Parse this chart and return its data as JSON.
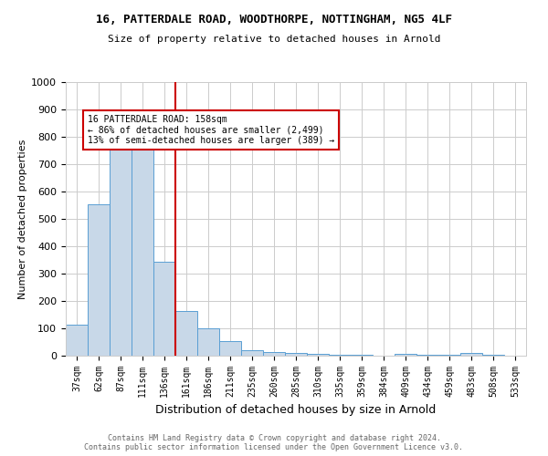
{
  "title_line1": "16, PATTERDALE ROAD, WOODTHORPE, NOTTINGHAM, NG5 4LF",
  "title_line2": "Size of property relative to detached houses in Arnold",
  "xlabel": "Distribution of detached houses by size in Arnold",
  "ylabel": "Number of detached properties",
  "categories": [
    "37sqm",
    "62sqm",
    "87sqm",
    "111sqm",
    "136sqm",
    "161sqm",
    "186sqm",
    "211sqm",
    "235sqm",
    "260sqm",
    "285sqm",
    "310sqm",
    "335sqm",
    "359sqm",
    "384sqm",
    "409sqm",
    "434sqm",
    "459sqm",
    "483sqm",
    "508sqm",
    "533sqm"
  ],
  "values": [
    112,
    554,
    775,
    760,
    344,
    163,
    99,
    54,
    19,
    13,
    10,
    8,
    5,
    3,
    0,
    8,
    3,
    3,
    10,
    3,
    0
  ],
  "bar_color": "#c8d8e8",
  "bar_edge_color": "#5a9fd4",
  "property_line_index": 4.5,
  "property_line_color": "#cc0000",
  "annotation_text": "16 PATTERDALE ROAD: 158sqm\n← 86% of detached houses are smaller (2,499)\n13% of semi-detached houses are larger (389) →",
  "annotation_box_color": "#ffffff",
  "annotation_box_edge": "#cc0000",
  "ylim": [
    0,
    1000
  ],
  "yticks": [
    0,
    100,
    200,
    300,
    400,
    500,
    600,
    700,
    800,
    900,
    1000
  ],
  "footer_line1": "Contains HM Land Registry data © Crown copyright and database right 2024.",
  "footer_line2": "Contains public sector information licensed under the Open Government Licence v3.0.",
  "bg_color": "#ffffff",
  "grid_color": "#cccccc",
  "title_fontsize": 9,
  "subtitle_fontsize": 8,
  "ylabel_fontsize": 8,
  "xlabel_fontsize": 9,
  "tick_fontsize": 7,
  "annotation_fontsize": 7,
  "footer_fontsize": 6,
  "footer_color": "#666666"
}
